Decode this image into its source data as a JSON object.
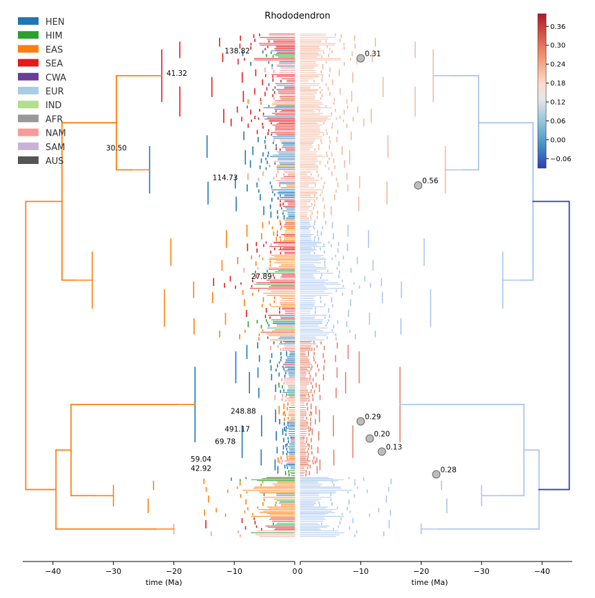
{
  "chart_data": {
    "type": "line",
    "title": "Rhododendron",
    "xlabel_left": "time (Ma)",
    "xlabel_right": "time (Ma)",
    "xlim_left": [
      -45,
      0
    ],
    "xlim_right": [
      0,
      -45
    ],
    "xticks_left": [
      -40,
      -30,
      -20,
      -10,
      0
    ],
    "xticks_right": [
      0,
      -10,
      -20,
      -30,
      -40
    ],
    "legend": [
      {
        "name": "HEN",
        "color": "#1f77b4"
      },
      {
        "name": "HIM",
        "color": "#2ca02c"
      },
      {
        "name": "EAS",
        "color": "#ff7f0e"
      },
      {
        "name": "SEA",
        "color": "#e41a1c"
      },
      {
        "name": "CWA",
        "color": "#6a3d9a"
      },
      {
        "name": "EUR",
        "color": "#a6cee3"
      },
      {
        "name": "IND",
        "color": "#b2df8a"
      },
      {
        "name": "AFR",
        "color": "#999999"
      },
      {
        "name": "NAM",
        "color": "#fb9a99"
      },
      {
        "name": "SAM",
        "color": "#cab2d6"
      },
      {
        "name": "AUS",
        "color": "#555555"
      }
    ],
    "legend_placement": "top-left",
    "colorbar": {
      "ticks": [
        0.36,
        0.3,
        0.24,
        0.18,
        0.12,
        0.06,
        0.0,
        -0.06
      ],
      "range": [
        -0.09,
        0.4
      ],
      "placement": "top-right"
    },
    "node_labels": [
      {
        "text": "138.82",
        "t": -9.5,
        "y": 0.04
      },
      {
        "text": "41.32",
        "t": -19.5,
        "y": 0.085
      },
      {
        "text": "30.50",
        "t": -29.5,
        "y": 0.233
      },
      {
        "text": "114.73",
        "t": -11.5,
        "y": 0.292
      },
      {
        "text": "27.89",
        "t": -5.5,
        "y": 0.488
      },
      {
        "text": "248.88",
        "t": -8.5,
        "y": 0.755
      },
      {
        "text": "491.17",
        "t": -9.5,
        "y": 0.79
      },
      {
        "text": "69.78",
        "t": -11.5,
        "y": 0.815
      },
      {
        "text": "59.04",
        "t": -15.5,
        "y": 0.85
      },
      {
        "text": "42.92",
        "t": -15.5,
        "y": 0.868
      }
    ],
    "rate_shifts": [
      {
        "text": "0.31",
        "t": -10.0,
        "y": 0.05
      },
      {
        "text": "0.56",
        "t": -19.5,
        "y": 0.302
      },
      {
        "text": "0.29",
        "t": -10.0,
        "y": 0.77
      },
      {
        "text": "0.20",
        "t": -11.5,
        "y": 0.804
      },
      {
        "text": "0.13",
        "t": -13.5,
        "y": 0.83
      },
      {
        "text": "0.28",
        "t": -22.5,
        "y": 0.875
      }
    ]
  }
}
